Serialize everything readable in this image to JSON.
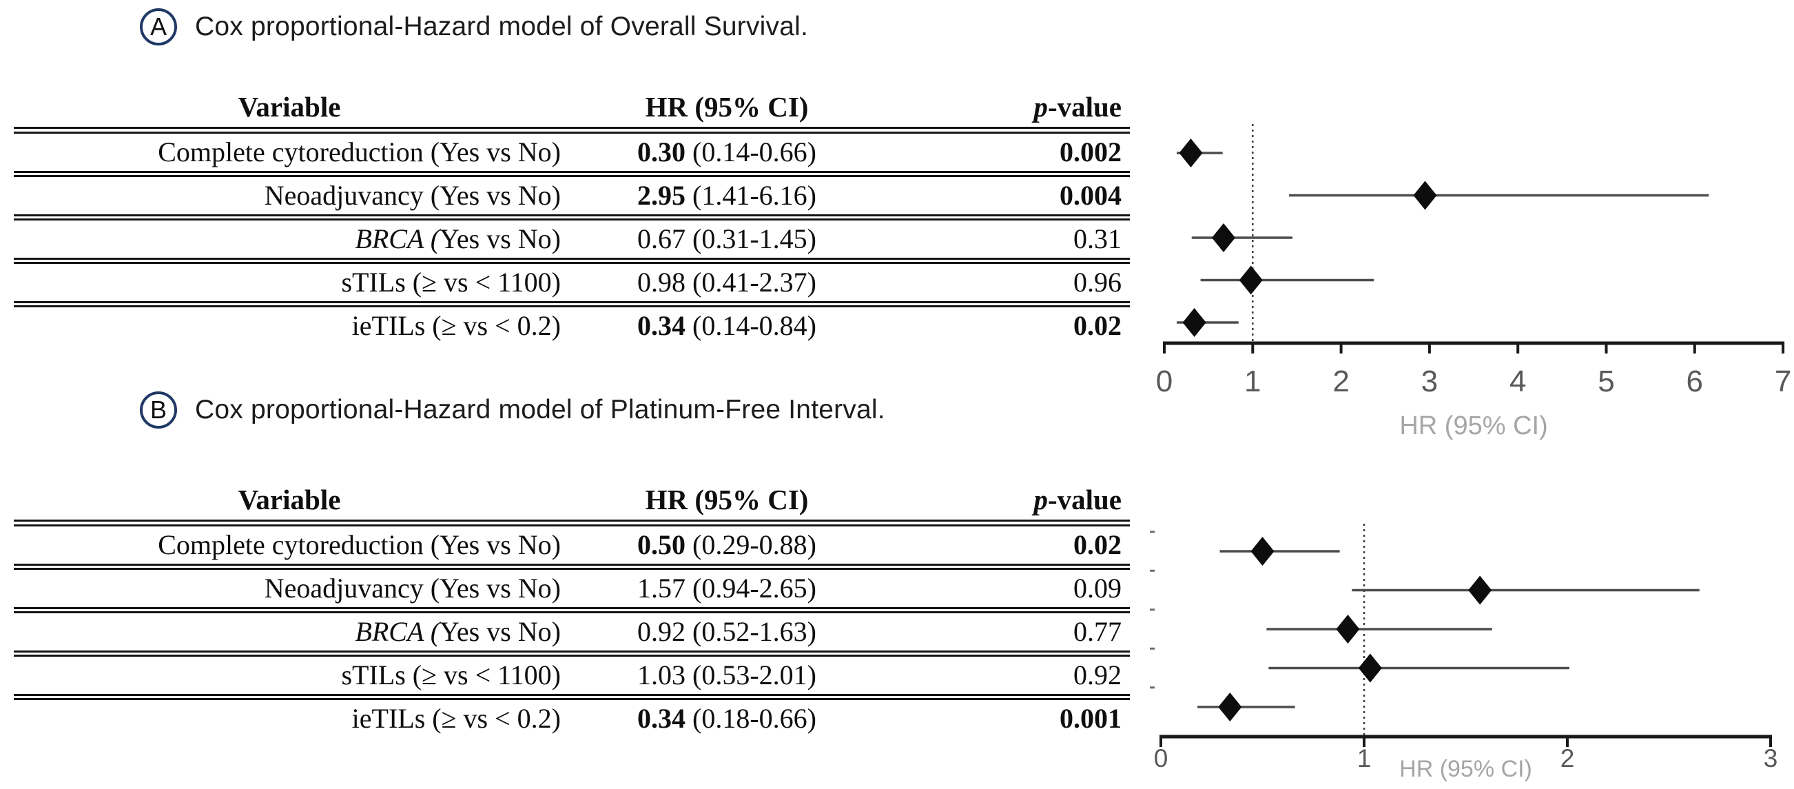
{
  "panels": {
    "a": {
      "label": "A",
      "title": "Cox proportional-Hazard model of Overall Survival.",
      "table": {
        "headers": {
          "variable": "Variable",
          "hr": "HR (95% CI)",
          "p_italic": "p",
          "p_rest": "-value"
        },
        "rows": [
          {
            "variable_italic": "",
            "variable": "Complete cytoreduction (Yes vs No)",
            "hr": "0.30",
            "ci": " (0.14-0.66)",
            "p": "0.002",
            "significant": true
          },
          {
            "variable_italic": "",
            "variable": "Neoadjuvancy (Yes vs No)",
            "hr": "2.95",
            "ci": " (1.41-6.16)",
            "p": "0.004",
            "significant": true
          },
          {
            "variable_italic": "BRCA (",
            "variable": "Yes vs No)",
            "hr": "0.67",
            "ci": " (0.31-1.45)",
            "p": "0.31",
            "significant": false
          },
          {
            "variable_italic": "",
            "variable": "sTILs (≥ vs < 1100)",
            "hr": "0.98",
            "ci": " (0.41-2.37)",
            "p": "0.96",
            "significant": false
          },
          {
            "variable_italic": "",
            "variable": "ieTILs (≥ vs < 0.2)",
            "hr": "0.34",
            "ci": " (0.14-0.84)",
            "p": "0.02",
            "significant": true
          }
        ]
      }
    },
    "b": {
      "label": "B",
      "title": "Cox proportional-Hazard model of Platinum-Free Interval.",
      "table": {
        "headers": {
          "variable": "Variable",
          "hr": "HR (95% CI)",
          "p_italic": "p",
          "p_rest": "-value"
        },
        "rows": [
          {
            "variable_italic": "",
            "variable": "Complete cytoreduction (Yes vs No)",
            "hr": "0.50",
            "ci": " (0.29-0.88)",
            "p": "0.02",
            "significant": true
          },
          {
            "variable_italic": "",
            "variable": "Neoadjuvancy (Yes vs No)",
            "hr": "1.57",
            "ci": " (0.94-2.65)",
            "p": "0.09",
            "significant": false
          },
          {
            "variable_italic": "BRCA (",
            "variable": "Yes vs No)",
            "hr": "0.92",
            "ci": " (0.52-1.63)",
            "p": "0.77",
            "significant": false
          },
          {
            "variable_italic": "",
            "variable": "sTILs (≥ vs < 1100)",
            "hr": "1.03",
            "ci": " (0.53-2.01)",
            "p": "0.92",
            "significant": false
          },
          {
            "variable_italic": "",
            "variable": "ieTILs (≥ vs < 0.2)",
            "hr": "0.34",
            "ci": " (0.18-0.66)",
            "p": "0.001",
            "significant": true
          }
        ]
      }
    }
  },
  "chart_data": [
    {
      "type": "scatter",
      "subtype": "forest",
      "panel": "A",
      "title": "Cox proportional-Hazard model of Overall Survival.",
      "xlabel": "HR (95% CI)",
      "xlim": [
        0,
        7
      ],
      "ticks": [
        0,
        1,
        2,
        3,
        4,
        5,
        6,
        7
      ],
      "ref_line": 1,
      "grid": false,
      "rows": [
        {
          "label": "Complete cytoreduction (Yes vs No)",
          "hr": 0.3,
          "lo": 0.14,
          "hi": 0.66
        },
        {
          "label": "Neoadjuvancy (Yes vs No)",
          "hr": 2.95,
          "lo": 1.41,
          "hi": 6.16
        },
        {
          "label": "BRCA (Yes vs No)",
          "hr": 0.67,
          "lo": 0.31,
          "hi": 1.45
        },
        {
          "label": "sTILs (≥ vs < 1100)",
          "hr": 0.98,
          "lo": 0.41,
          "hi": 2.37
        },
        {
          "label": "ieTILs (≥ vs < 0.2)",
          "hr": 0.34,
          "lo": 0.14,
          "hi": 0.84
        }
      ],
      "colors": {
        "diamond": "#0d0d0d",
        "ci": "#4d4d4d",
        "axis": "#1a1a1a",
        "ref": "#3d3d3d",
        "tick_text": "#595959",
        "axis_label": "#a6a6a6"
      },
      "y_side_ticks": false
    },
    {
      "type": "scatter",
      "subtype": "forest",
      "panel": "B",
      "title": "Cox proportional-Hazard model of Platinum-Free Interval.",
      "xlabel": "HR (95% CI)",
      "xlim": [
        0,
        3
      ],
      "ticks": [
        0,
        1,
        2,
        3
      ],
      "ref_line": 1,
      "grid": false,
      "rows": [
        {
          "label": "Complete cytoreduction (Yes vs No)",
          "hr": 0.5,
          "lo": 0.29,
          "hi": 0.88
        },
        {
          "label": "Neoadjuvancy (Yes vs No)",
          "hr": 1.57,
          "lo": 0.94,
          "hi": 2.65
        },
        {
          "label": "BRCA (Yes vs No)",
          "hr": 0.92,
          "lo": 0.52,
          "hi": 1.63
        },
        {
          "label": "sTILs (≥ vs < 1100)",
          "hr": 1.03,
          "lo": 0.53,
          "hi": 2.01
        },
        {
          "label": "ieTILs (≥ vs < 0.2)",
          "hr": 0.34,
          "lo": 0.18,
          "hi": 0.66
        }
      ],
      "colors": {
        "diamond": "#0d0d0d",
        "ci": "#4d4d4d",
        "axis": "#1a1a1a",
        "ref": "#3d3d3d",
        "tick_text": "#595959",
        "axis_label": "#a6a6a6",
        "y_tick": "#6e6e6e"
      },
      "y_side_ticks": true
    }
  ]
}
